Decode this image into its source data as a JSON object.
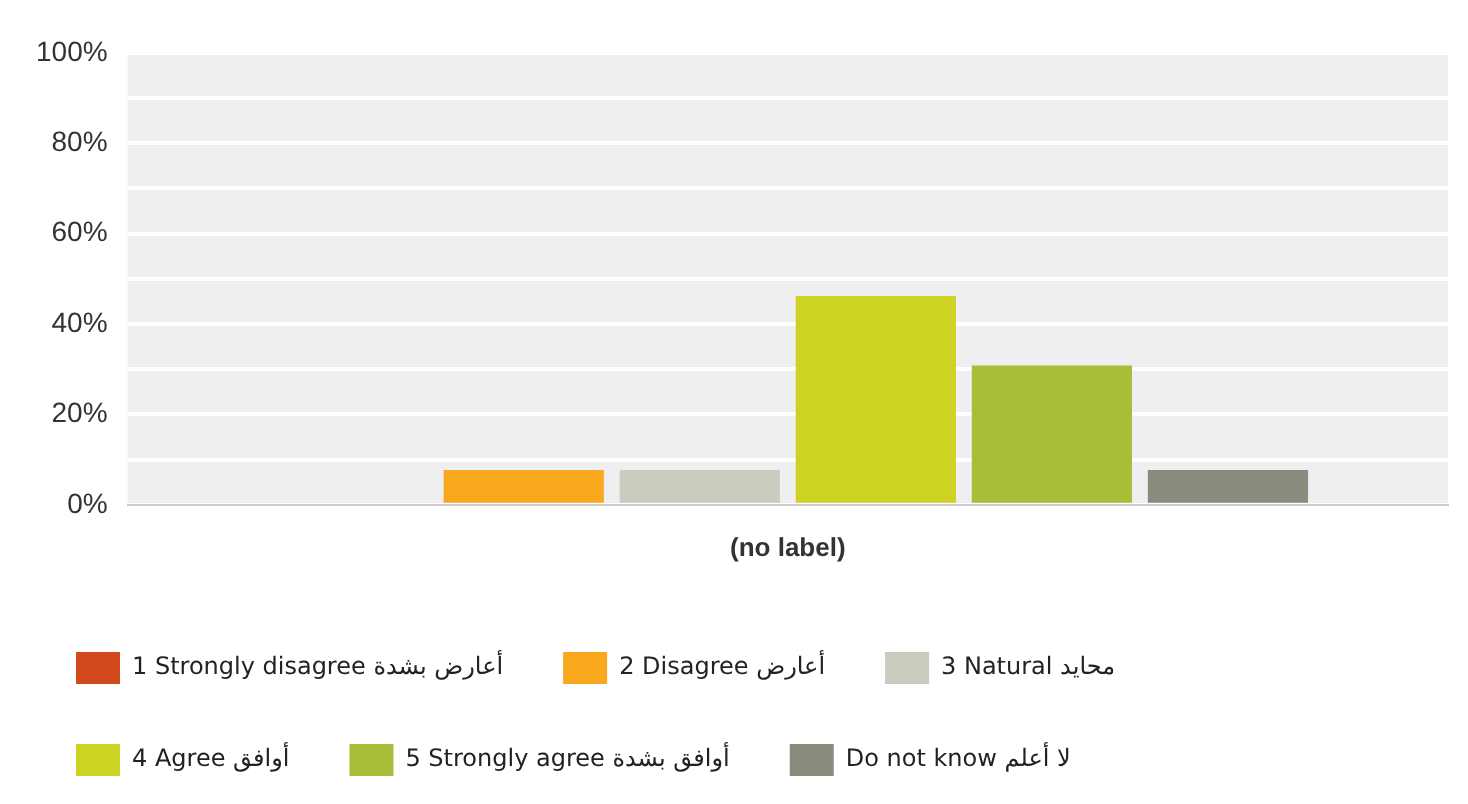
{
  "chart_data": {
    "type": "bar",
    "categories": [
      "(no label)"
    ],
    "series": [
      {
        "name": "1 Strongly disagree أعارض بشدة",
        "color": "#d04a1c",
        "values": [
          0
        ]
      },
      {
        "name": "2 Disagree أعارض",
        "color": "#f7a81c",
        "values": [
          7.7
        ]
      },
      {
        "name": "3 Natural محايد",
        "color": "#cccbc0",
        "values": [
          7.7
        ]
      },
      {
        "name": "4 Agree أوافق",
        "color": "#cdd323",
        "values": [
          46.2
        ]
      },
      {
        "name": "5 Strongly agree أوافق بشدة",
        "color": "#a9bd38",
        "values": [
          30.8
        ]
      },
      {
        "name": "Do not know لا أعلم",
        "color": "#8a8b7c",
        "values": [
          7.7
        ]
      }
    ],
    "ylim": [
      0,
      100
    ],
    "yticks": [
      {
        "value": 0,
        "label": "0%"
      },
      {
        "value": 10,
        "label": null
      },
      {
        "value": 20,
        "label": "20%"
      },
      {
        "value": 30,
        "label": null
      },
      {
        "value": 40,
        "label": "40%"
      },
      {
        "value": 50,
        "label": null
      },
      {
        "value": 60,
        "label": "60%"
      },
      {
        "value": 70,
        "label": null
      },
      {
        "value": 80,
        "label": "80%"
      },
      {
        "value": 90,
        "label": null
      },
      {
        "value": 100,
        "label": "100%"
      }
    ],
    "grid": "y",
    "legend": "bottom"
  }
}
